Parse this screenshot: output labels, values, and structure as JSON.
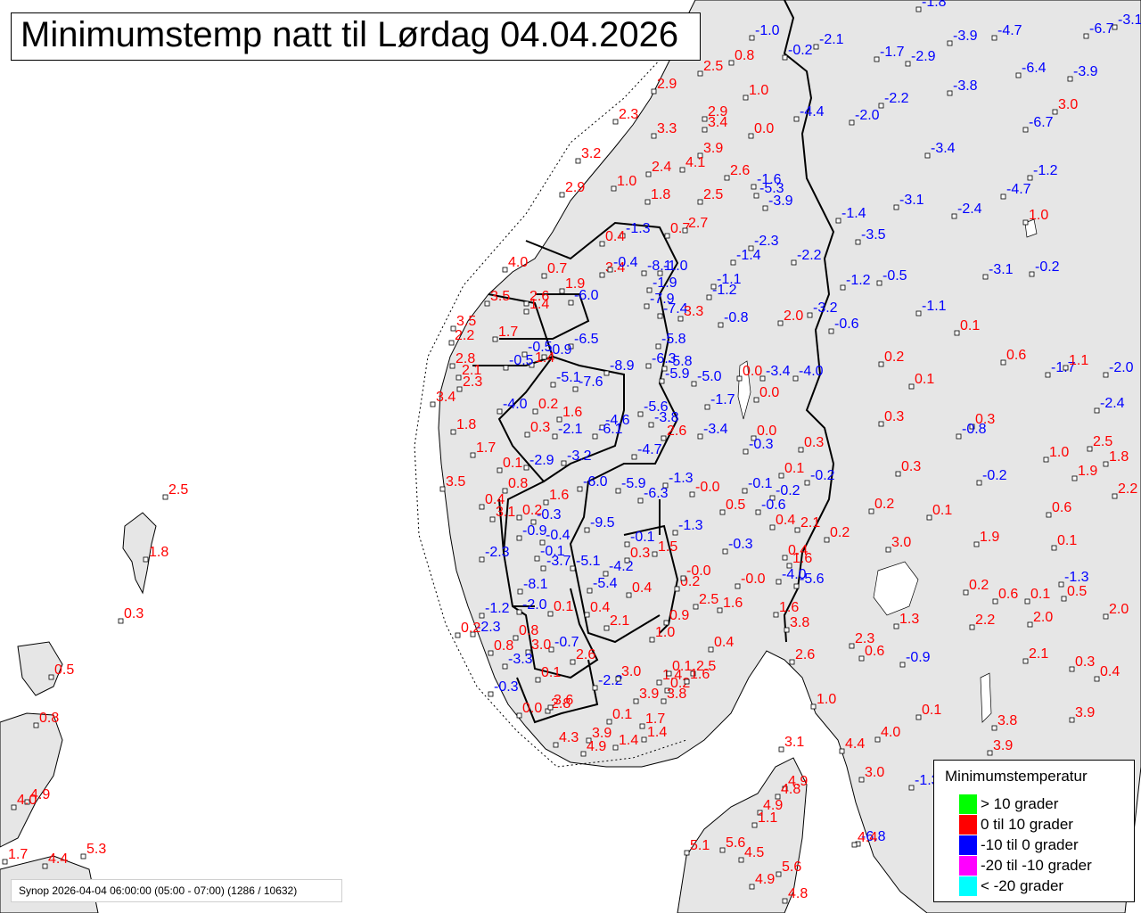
{
  "title": "Minimumstemp natt til Lørdag 04.04.2026",
  "footer": "Synop 2026-04-04 06:00:00 (05:00 - 07:00) (1286 / 10632)",
  "colors": {
    "positive": "#ff0000",
    "negative": "#0000ff",
    "land": "#e6e6e6"
  },
  "legend": {
    "title": "Minimumstemperatur",
    "items": [
      {
        "label": "> 10 grader",
        "color": "#00ff00"
      },
      {
        "label": "0 til 10 grader",
        "color": "#ff0000"
      },
      {
        "label": "-10 til 0 grader",
        "color": "#0000ff"
      },
      {
        "label": "-20 til -10 grader",
        "color": "#ff00ff"
      },
      {
        "label": "< -20 grader",
        "color": "#00ffff"
      }
    ]
  },
  "stations": [
    {
      "v": "-1.8"
    },
    {
      "v": "-1.0"
    },
    {
      "v": "-2.1"
    },
    {
      "v": "-3.9"
    },
    {
      "v": "-4.7"
    },
    {
      "v": "-6.7"
    },
    {
      "v": "-3.1"
    },
    {
      "v": "2.5"
    },
    {
      "v": "0.8"
    },
    {
      "v": "-0.2"
    },
    {
      "v": "-1.7"
    },
    {
      "v": "-2.9"
    },
    {
      "v": "-3.8"
    },
    {
      "v": "-6.4"
    },
    {
      "v": "-3.9"
    },
    {
      "v": "2.9"
    },
    {
      "v": "1.0"
    },
    {
      "v": "-4.4"
    },
    {
      "v": "-2.0"
    },
    {
      "v": "-2.2"
    },
    {
      "v": "3.0"
    },
    {
      "v": "-6.7"
    },
    {
      "v": "2.3"
    },
    {
      "v": "3.3"
    },
    {
      "v": "2.9"
    },
    {
      "v": "3.4"
    },
    {
      "v": "0.0"
    },
    {
      "v": "3.9"
    },
    {
      "v": "-3.4"
    },
    {
      "v": "3.2"
    },
    {
      "v": "2.4"
    },
    {
      "v": "4.1"
    },
    {
      "v": "2.6"
    },
    {
      "v": "-1.6"
    },
    {
      "v": "-1.2"
    },
    {
      "v": "2.9"
    },
    {
      "v": "1.0"
    },
    {
      "v": "1.8"
    },
    {
      "v": "2.5"
    },
    {
      "v": "-5.3"
    },
    {
      "v": "-3.9"
    },
    {
      "v": "-3.1"
    },
    {
      "v": "-4.7"
    },
    {
      "v": "-1.4"
    },
    {
      "v": "-2.4"
    },
    {
      "v": "1.0"
    },
    {
      "v": "0.7"
    },
    {
      "v": "2.7"
    },
    {
      "v": "-1.3"
    },
    {
      "v": "-3.5"
    },
    {
      "v": "-2.3"
    },
    {
      "v": "0.4"
    },
    {
      "v": "-1.4"
    },
    {
      "v": "-2.2"
    },
    {
      "v": "4.0"
    },
    {
      "v": "3.4"
    },
    {
      "v": "-0.4"
    },
    {
      "v": "-8.1"
    },
    {
      "v": "-1.0"
    },
    {
      "v": "-3.1"
    },
    {
      "v": "-0.2"
    },
    {
      "v": "0.7"
    },
    {
      "v": "-1.9"
    },
    {
      "v": "-1.1"
    },
    {
      "v": "-1.2"
    },
    {
      "v": "-0.5"
    },
    {
      "v": "1.9"
    },
    {
      "v": "-6.0"
    },
    {
      "v": "-7.9"
    },
    {
      "v": "-1.2"
    },
    {
      "v": "3.5"
    },
    {
      "v": "2.6"
    },
    {
      "v": "-7.4"
    },
    {
      "v": "3.3"
    },
    {
      "v": "-0.8"
    },
    {
      "v": "2.0"
    },
    {
      "v": "-3.2"
    },
    {
      "v": "-1.1"
    },
    {
      "v": "3.5"
    },
    {
      "v": "1.4"
    },
    {
      "v": "-6.5"
    },
    {
      "v": "-5.8"
    },
    {
      "v": "-0.6"
    },
    {
      "v": "0.1"
    },
    {
      "v": "2.2"
    },
    {
      "v": "1.7"
    },
    {
      "v": "-0.5"
    },
    {
      "v": "-0.9"
    },
    {
      "v": "-5.8"
    },
    {
      "v": "0.6"
    },
    {
      "v": "2.8"
    },
    {
      "v": "1.4"
    },
    {
      "v": "-6.3"
    },
    {
      "v": "0.2"
    },
    {
      "v": "-1.7"
    },
    {
      "v": "1.1"
    },
    {
      "v": "-2.0"
    },
    {
      "v": "2.1"
    },
    {
      "v": "-0.5"
    },
    {
      "v": "-8.9"
    },
    {
      "v": "-5.9"
    },
    {
      "v": "-5.0"
    },
    {
      "v": "0.0"
    },
    {
      "v": "-3.4"
    },
    {
      "v": "-4.0"
    },
    {
      "v": "0.1"
    },
    {
      "v": "2.3"
    },
    {
      "v": "-5.1"
    },
    {
      "v": "-7.6"
    },
    {
      "v": "0.0"
    },
    {
      "v": "-2.4"
    },
    {
      "v": "3.4"
    },
    {
      "v": "-4.0"
    },
    {
      "v": "0.2"
    },
    {
      "v": "-5.6"
    },
    {
      "v": "-1.7"
    },
    {
      "v": "0.3"
    },
    {
      "v": "0.3"
    },
    {
      "v": "1.8"
    },
    {
      "v": "1.6"
    },
    {
      "v": "-4.6"
    },
    {
      "v": "-3.8"
    },
    {
      "v": "-0.8"
    },
    {
      "v": "0.3"
    },
    {
      "v": "-2.1"
    },
    {
      "v": "-6.1"
    },
    {
      "v": "2.6"
    },
    {
      "v": "-3.4"
    },
    {
      "v": "0.0"
    },
    {
      "v": "2.5"
    },
    {
      "v": "1.7"
    },
    {
      "v": "-4.7"
    },
    {
      "v": "-0.3"
    },
    {
      "v": "0.3"
    },
    {
      "v": "1.8"
    },
    {
      "v": "0.1"
    },
    {
      "v": "-2.9"
    },
    {
      "v": "-3.2"
    },
    {
      "v": "0.1"
    },
    {
      "v": "0.3"
    },
    {
      "v": "1.0"
    },
    {
      "v": "1.9"
    },
    {
      "v": "3.5"
    },
    {
      "v": "0.8"
    },
    {
      "v": "-6.0"
    },
    {
      "v": "-5.9"
    },
    {
      "v": "-1.3"
    },
    {
      "v": "-0.0"
    },
    {
      "v": "-0.1"
    },
    {
      "v": "-0.2"
    },
    {
      "v": "-0.2"
    },
    {
      "v": "-0.2"
    },
    {
      "v": "0.4"
    },
    {
      "v": "-0.3"
    },
    {
      "v": "1.6"
    },
    {
      "v": "-6.3"
    },
    {
      "v": "2.1"
    },
    {
      "v": "3.1"
    },
    {
      "v": "0.2"
    },
    {
      "v": "0.5"
    },
    {
      "v": "-0.6"
    },
    {
      "v": "0.2"
    },
    {
      "v": "0.1"
    },
    {
      "v": "0.6"
    },
    {
      "v": "2.2"
    },
    {
      "v": "-0.9"
    },
    {
      "v": "-9.5"
    },
    {
      "v": "-1.3"
    },
    {
      "v": "0.4"
    },
    {
      "v": "0.2"
    },
    {
      "v": "3.0"
    },
    {
      "v": "1.9"
    },
    {
      "v": "0.1"
    },
    {
      "v": "-0.1"
    },
    {
      "v": "-0.4"
    },
    {
      "v": "-0.1"
    },
    {
      "v": "-0.3"
    },
    {
      "v": "0.4"
    },
    {
      "v": "1.6"
    },
    {
      "v": "-5.6"
    },
    {
      "v": "-2.3"
    },
    {
      "v": "-3.7"
    },
    {
      "v": "-5.1"
    },
    {
      "v": "-4.2"
    },
    {
      "v": "0.3"
    },
    {
      "v": "1.5"
    },
    {
      "v": "-4.0"
    },
    {
      "v": "-8.1"
    },
    {
      "v": "-5.4"
    },
    {
      "v": "0.4"
    },
    {
      "v": "0.2"
    },
    {
      "v": "-0.0"
    },
    {
      "v": "-0.0"
    },
    {
      "v": "0.2"
    },
    {
      "v": "0.6"
    },
    {
      "v": "0.1"
    },
    {
      "v": "0.5"
    },
    {
      "v": "-1.3"
    },
    {
      "v": "-2.0"
    },
    {
      "v": "0.1"
    },
    {
      "v": "0.4"
    },
    {
      "v": "1.6"
    },
    {
      "v": "2.5"
    },
    {
      "v": "1.6"
    },
    {
      "v": "-1.2"
    },
    {
      "v": "-2.3"
    },
    {
      "v": "2.1"
    },
    {
      "v": "0.9"
    },
    {
      "v": "1.3"
    },
    {
      "v": "2.2"
    },
    {
      "v": "2.0"
    },
    {
      "v": "2.0"
    },
    {
      "v": "0.2"
    },
    {
      "v": "0.8"
    },
    {
      "v": "1.0"
    },
    {
      "v": "0.4"
    },
    {
      "v": "3.8"
    },
    {
      "v": "2.3"
    },
    {
      "v": "0.8"
    },
    {
      "v": "-0.7"
    },
    {
      "v": "3.0"
    },
    {
      "v": "2.6"
    },
    {
      "v": "2.6"
    },
    {
      "v": "0.6"
    },
    {
      "v": "-0.9"
    },
    {
      "v": "2.1"
    },
    {
      "v": "0.3"
    },
    {
      "v": "-3.3"
    },
    {
      "v": "0.1"
    },
    {
      "v": "1.4"
    },
    {
      "v": "-2.2"
    },
    {
      "v": "3.0"
    },
    {
      "v": "0.1"
    },
    {
      "v": "2.5"
    },
    {
      "v": "0.4"
    },
    {
      "v": "-0.3"
    },
    {
      "v": "2.8"
    },
    {
      "v": "0.2"
    },
    {
      "v": "1.6"
    },
    {
      "v": "3.9"
    },
    {
      "v": "3.8"
    },
    {
      "v": "1.0"
    },
    {
      "v": "0.0"
    },
    {
      "v": "3.6"
    },
    {
      "v": "0.1"
    },
    {
      "v": "1.7"
    },
    {
      "v": "0.1"
    },
    {
      "v": "3.9"
    },
    {
      "v": "3.8"
    },
    {
      "v": "4.3"
    },
    {
      "v": "3.9"
    },
    {
      "v": "1.4"
    },
    {
      "v": "1.4"
    },
    {
      "v": "4.0"
    },
    {
      "v": "3.9"
    },
    {
      "v": "4.9"
    },
    {
      "v": "4.4"
    },
    {
      "v": "3.1"
    },
    {
      "v": "3.0"
    },
    {
      "v": "2.5"
    },
    {
      "v": "1.8"
    },
    {
      "v": "0.3"
    },
    {
      "v": "0.5"
    },
    {
      "v": "0.8"
    },
    {
      "v": "4.9"
    },
    {
      "v": "4.0"
    },
    {
      "v": "4.9"
    },
    {
      "v": "4.8"
    },
    {
      "v": "4.9"
    },
    {
      "v": "1.1"
    },
    {
      "v": "-6.8"
    },
    {
      "v": "-1.3"
    },
    {
      "v": "1.7"
    },
    {
      "v": "4.4"
    },
    {
      "v": "5.3"
    },
    {
      "v": "5.1"
    },
    {
      "v": "5.6"
    },
    {
      "v": "4.5"
    },
    {
      "v": "4.4"
    },
    {
      "v": "4.9"
    },
    {
      "v": "5.6"
    },
    {
      "v": "4.8"
    }
  ]
}
